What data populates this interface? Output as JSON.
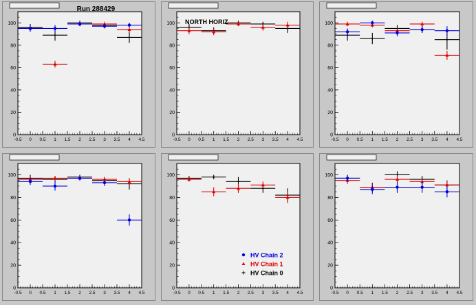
{
  "run_label": "Run 288429",
  "panel_label": "NORTH HORIZ",
  "colors": {
    "chain2": "#0000dd",
    "chain1": "#dd0000",
    "chain0": "#000000",
    "frame": "#f0f0f0",
    "pad": "#c8c8c8"
  },
  "legend": [
    {
      "key": "chain2",
      "label": "HV Chain 2",
      "marker": "circle"
    },
    {
      "key": "chain1",
      "label": "HV Chain 1",
      "marker": "triangle"
    },
    {
      "key": "chain0",
      "label": "HV Chain 0",
      "marker": "cross"
    }
  ],
  "chart_data": [
    {
      "type": "scatter",
      "title_strip": "",
      "xlim": [
        -0.5,
        4.5
      ],
      "ylim": [
        0,
        110
      ],
      "xticks": [
        -0.5,
        0,
        0.5,
        1,
        1.5,
        2,
        2.5,
        3,
        3.5,
        4,
        4.5
      ],
      "yticks": [
        0,
        20,
        40,
        60,
        80,
        100
      ],
      "series": [
        {
          "key": "chain2",
          "x": [
            0,
            1,
            2,
            3,
            4
          ],
          "y": [
            95,
            95,
            99,
            97,
            98
          ],
          "yerr": [
            3,
            3,
            2,
            2,
            2
          ]
        },
        {
          "key": "chain1",
          "x": [
            0,
            1,
            2,
            3,
            4
          ],
          "y": [
            95,
            63,
            99,
            99,
            94
          ],
          "yerr": [
            2,
            3,
            2,
            2,
            2
          ]
        },
        {
          "key": "chain0",
          "x": [
            0,
            1,
            2,
            3,
            4
          ],
          "y": [
            96,
            89,
            100,
            98,
            87
          ],
          "yerr": [
            3,
            5,
            2,
            2,
            5
          ]
        }
      ]
    },
    {
      "type": "scatter",
      "title_strip": "",
      "xlim": [
        -0.5,
        4.5
      ],
      "ylim": [
        0,
        110
      ],
      "xticks": [
        -0.5,
        0,
        0.5,
        1,
        1.5,
        2,
        2.5,
        3,
        3.5,
        4,
        4.5
      ],
      "yticks": [
        0,
        20,
        40,
        60,
        80,
        100
      ],
      "series": [
        {
          "key": "chain1",
          "x": [
            0,
            1,
            2,
            3,
            4
          ],
          "y": [
            93,
            92,
            99,
            96,
            98
          ],
          "yerr": [
            3,
            3,
            2,
            3,
            3
          ]
        },
        {
          "key": "chain0",
          "x": [
            0,
            1,
            2,
            3,
            4
          ],
          "y": [
            96,
            93,
            100,
            99,
            95
          ],
          "yerr": [
            3,
            3,
            2,
            2,
            4
          ]
        }
      ]
    },
    {
      "type": "scatter",
      "title_strip": "",
      "xlim": [
        -0.5,
        4.5
      ],
      "ylim": [
        0,
        110
      ],
      "xticks": [
        -0.5,
        0,
        0.5,
        1,
        1.5,
        2,
        2.5,
        3,
        3.5,
        4,
        4.5
      ],
      "yticks": [
        0,
        20,
        40,
        60,
        80,
        100
      ],
      "series": [
        {
          "key": "chain2",
          "x": [
            0,
            1,
            2,
            3,
            4
          ],
          "y": [
            92,
            100,
            91,
            94,
            93
          ],
          "yerr": [
            3,
            2,
            3,
            3,
            4
          ]
        },
        {
          "key": "chain1",
          "x": [
            0,
            1,
            2,
            3,
            4
          ],
          "y": [
            99,
            98,
            93,
            99,
            71
          ],
          "yerr": [
            2,
            2,
            3,
            2,
            4
          ]
        },
        {
          "key": "chain0",
          "x": [
            0,
            1,
            2,
            3,
            4
          ],
          "y": [
            89,
            86,
            95,
            94,
            85
          ],
          "yerr": [
            5,
            5,
            3,
            3,
            9
          ]
        }
      ]
    },
    {
      "type": "scatter",
      "title_strip": "",
      "xlim": [
        -0.5,
        4.5
      ],
      "ylim": [
        0,
        110
      ],
      "xticks": [
        -0.5,
        0,
        0.5,
        1,
        1.5,
        2,
        2.5,
        3,
        3.5,
        4,
        4.5
      ],
      "yticks": [
        0,
        20,
        40,
        60,
        80,
        100
      ],
      "series": [
        {
          "key": "chain2",
          "x": [
            0,
            1,
            2,
            3,
            4
          ],
          "y": [
            94,
            90,
            97,
            93,
            60
          ],
          "yerr": [
            3,
            4,
            2,
            3,
            5
          ]
        },
        {
          "key": "chain1",
          "x": [
            0,
            1,
            2,
            3,
            4
          ],
          "y": [
            96,
            97,
            97,
            96,
            94
          ],
          "yerr": [
            2,
            2,
            2,
            2,
            3
          ]
        },
        {
          "key": "chain0",
          "x": [
            0,
            1,
            2,
            3,
            4
          ],
          "y": [
            97,
            96,
            98,
            95,
            92
          ],
          "yerr": [
            3,
            3,
            2,
            3,
            5
          ]
        }
      ]
    },
    {
      "type": "scatter",
      "title_strip": "",
      "xlim": [
        -0.5,
        4.5
      ],
      "ylim": [
        0,
        110
      ],
      "xticks": [
        -0.5,
        0,
        0.5,
        1,
        1.5,
        2,
        2.5,
        3,
        3.5,
        4,
        4.5
      ],
      "yticks": [
        0,
        20,
        40,
        60,
        80,
        100
      ],
      "series": [
        {
          "key": "chain1",
          "x": [
            0,
            1,
            2,
            3,
            4
          ],
          "y": [
            96,
            85,
            88,
            91,
            80
          ],
          "yerr": [
            2,
            4,
            4,
            3,
            5
          ]
        },
        {
          "key": "chain0",
          "x": [
            0,
            1,
            2,
            3,
            4
          ],
          "y": [
            97,
            98,
            94,
            88,
            82
          ],
          "yerr": [
            2,
            2,
            4,
            4,
            6
          ]
        }
      ]
    },
    {
      "type": "scatter",
      "title_strip": "",
      "xlim": [
        -0.5,
        4.5
      ],
      "ylim": [
        0,
        110
      ],
      "xticks": [
        -0.5,
        0,
        0.5,
        1,
        1.5,
        2,
        2.5,
        3,
        3.5,
        4,
        4.5
      ],
      "yticks": [
        0,
        20,
        40,
        60,
        80,
        100
      ],
      "series": [
        {
          "key": "chain2",
          "x": [
            0,
            1,
            2,
            3,
            4
          ],
          "y": [
            97,
            87,
            89,
            89,
            85
          ],
          "yerr": [
            3,
            4,
            5,
            5,
            5
          ]
        },
        {
          "key": "chain1",
          "x": [
            0,
            1,
            2,
            3,
            4
          ],
          "y": [
            95,
            89,
            96,
            94,
            91
          ],
          "yerr": [
            3,
            3,
            3,
            3,
            3
          ]
        },
        {
          "key": "chain0",
          "x": [
            0,
            1,
            2,
            3,
            4
          ],
          "y": [
            97,
            89,
            100,
            96,
            91
          ],
          "yerr": [
            3,
            4,
            3,
            3,
            4
          ]
        }
      ]
    }
  ]
}
